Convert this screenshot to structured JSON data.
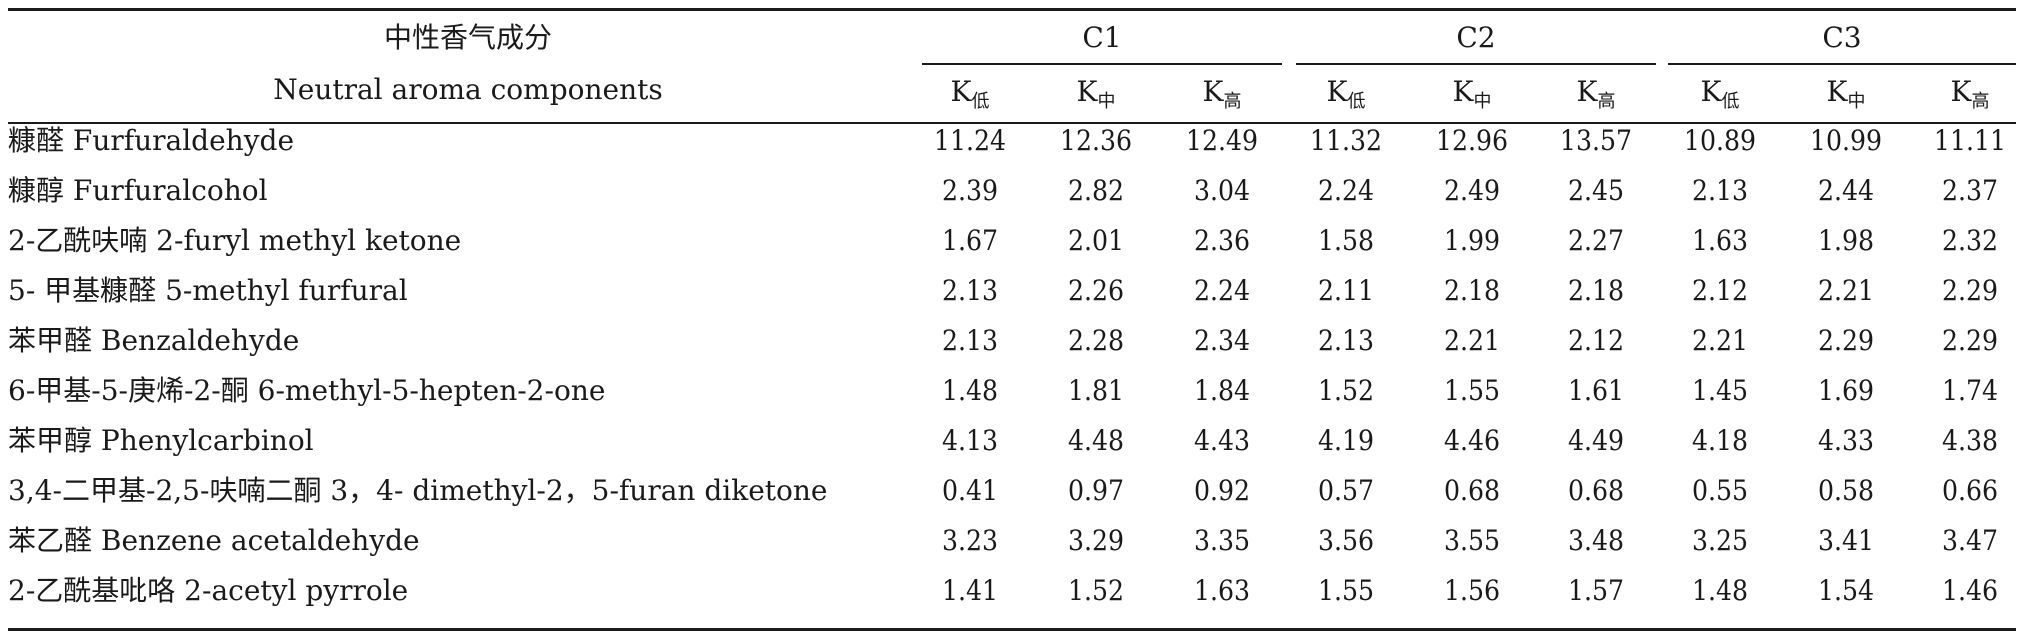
{
  "header": {
    "component_cn": "中性香气成分",
    "component_en": "Neutral aroma components",
    "groups": [
      "C1",
      "C2",
      "C3"
    ],
    "k_base": "K",
    "k_subs": [
      "低",
      "中",
      "高"
    ]
  },
  "rows": [
    {
      "name": "糠醛 Furfuraldehyde",
      "values": [
        "11.24",
        "12.36",
        "12.49",
        "11.32",
        "12.96",
        "13.57",
        "10.89",
        "10.99",
        "11.11"
      ]
    },
    {
      "name": "糠醇 Furfuralcohol",
      "values": [
        "2.39",
        "2.82",
        "3.04",
        "2.24",
        "2.49",
        "2.45",
        "2.13",
        "2.44",
        "2.37"
      ]
    },
    {
      "name": "2-乙酰呋喃 2-furyl methyl ketone",
      "values": [
        "1.67",
        "2.01",
        "2.36",
        "1.58",
        "1.99",
        "2.27",
        "1.63",
        "1.98",
        "2.32"
      ]
    },
    {
      "name": "5- 甲基糠醛 5-methyl furfural",
      "values": [
        "2.13",
        "2.26",
        "2.24",
        "2.11",
        "2.18",
        "2.18",
        "2.12",
        "2.21",
        "2.29"
      ]
    },
    {
      "name": "苯甲醛 Benzaldehyde",
      "values": [
        "2.13",
        "2.28",
        "2.34",
        "2.13",
        "2.21",
        "2.12",
        "2.21",
        "2.29",
        "2.29"
      ]
    },
    {
      "name": "6-甲基-5-庚烯-2-酮 6-methyl-5-hepten-2-one",
      "values": [
        "1.48",
        "1.81",
        "1.84",
        "1.52",
        "1.55",
        "1.61",
        "1.45",
        "1.69",
        "1.74"
      ]
    },
    {
      "name": "苯甲醇 Phenylcarbinol",
      "values": [
        "4.13",
        "4.48",
        "4.43",
        "4.19",
        "4.46",
        "4.49",
        "4.18",
        "4.33",
        "4.38"
      ]
    },
    {
      "name": "3,4-二甲基-2,5-呋喃二酮 3，4- dimethyl-2，5-furan diketone",
      "values": [
        "0.41",
        "0.97",
        "0.92",
        "0.57",
        "0.68",
        "0.68",
        "0.55",
        "0.58",
        "0.66"
      ]
    },
    {
      "name": "苯乙醛 Benzene acetaldehyde",
      "values": [
        "3.23",
        "3.29",
        "3.35",
        "3.56",
        "3.55",
        "3.48",
        "3.25",
        "3.41",
        "3.47"
      ]
    },
    {
      "name": "2-乙酰基吡咯 2-acetyl pyrrole",
      "values": [
        "1.41",
        "1.52",
        "1.63",
        "1.55",
        "1.56",
        "1.57",
        "1.48",
        "1.54",
        "1.46"
      ]
    }
  ]
}
